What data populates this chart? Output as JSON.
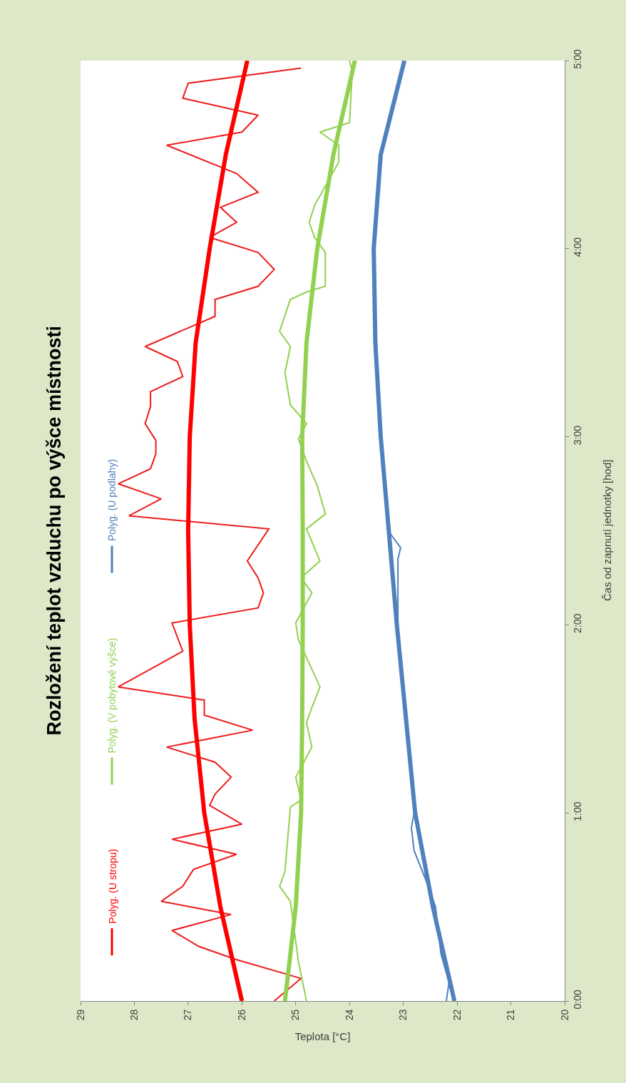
{
  "chart_data": {
    "type": "line",
    "title": "Rozložení teplot vzduchu po výšce místnosti",
    "xlabel": "Teplota [°C]",
    "ylabel": "Čas od zapnutí jednotky [hod]",
    "ylim": [
      0,
      5
    ],
    "yticks": [
      {
        "value": 0,
        "label": "0:00"
      },
      {
        "value": 1,
        "label": "1:00"
      },
      {
        "value": 2,
        "label": "2:00"
      },
      {
        "value": 3,
        "label": "3:00"
      },
      {
        "value": 4,
        "label": "4:00"
      },
      {
        "value": 5,
        "label": "5:00"
      }
    ],
    "xlim": [
      29,
      20
    ],
    "xticks": [
      29,
      28,
      27,
      26,
      25,
      24,
      23,
      22,
      21,
      20
    ],
    "legend": "left",
    "series": [
      {
        "color": "#ee1c1c",
        "values": [
          0,
          0.12,
          0.22,
          0.29,
          0.375,
          0.46,
          0.53,
          0.61,
          0.7,
          0.78,
          0.86,
          0.94,
          1.04,
          1.1,
          1.19,
          1.27,
          1.35,
          1.44,
          1.52,
          1.6,
          1.67,
          1.78,
          1.86,
          2.01,
          2.09,
          2.17,
          2.25,
          2.34,
          2.51,
          2.58,
          2.67,
          2.75,
          2.83,
          2.91,
          2.98,
          3.07,
          3.16,
          3.24,
          3.32,
          3.4,
          3.48,
          3.64,
          3.73,
          3.8,
          3.89,
          3.98,
          4.06,
          4.14,
          4.22,
          4.3,
          4.4,
          4.55,
          4.62,
          4.71,
          4.8,
          4.88,
          4.96
        ],
        "x": [
          25.4,
          24.9,
          26.1,
          26.8,
          27.3,
          26.2,
          27.5,
          27.1,
          26.9,
          26.1,
          27.3,
          26.0,
          26.6,
          26.5,
          26.2,
          26.5,
          27.4,
          25.8,
          26.7,
          26.7,
          28.3,
          27.6,
          27.1,
          27.3,
          25.7,
          25.6,
          25.7,
          25.9,
          25.5,
          28.1,
          27.5,
          28.3,
          27.7,
          27.6,
          27.6,
          27.8,
          27.7,
          27.7,
          27.1,
          27.2,
          27.8,
          26.5,
          26.5,
          25.7,
          25.4,
          25.7,
          26.6,
          26.1,
          26.4,
          25.7,
          26.1,
          27.4,
          26.0,
          25.7,
          27.1,
          27.0,
          24.9
        ]
      },
      {
        "color": "#92d050",
        "values": [
          0,
          0.21,
          0.53,
          0.61,
          0.69,
          0.86,
          1.03,
          1.07,
          1.19,
          1.35,
          1.48,
          1.56,
          1.67,
          1.92,
          2.01,
          2.17,
          2.25,
          2.34,
          2.51,
          2.59,
          2.74,
          2.87,
          2.99,
          3.07,
          3.17,
          3.34,
          3.48,
          3.56,
          3.73,
          3.77,
          3.8,
          3.98,
          4.06,
          4.14,
          4.23,
          4.46,
          4.55,
          4.62,
          4.67,
          4.94,
          5
        ],
        "x": [
          24.8,
          24.95,
          25.1,
          25.3,
          25.2,
          25.15,
          25.1,
          24.9,
          25.0,
          24.7,
          24.8,
          24.7,
          24.55,
          24.95,
          25.0,
          24.7,
          24.9,
          24.55,
          24.8,
          24.45,
          24.6,
          24.8,
          24.95,
          24.8,
          25.1,
          25.2,
          25.1,
          25.3,
          25.1,
          24.8,
          24.45,
          24.45,
          24.65,
          24.75,
          24.65,
          24.2,
          24.2,
          24.55,
          24.0,
          23.95,
          24.0
        ]
      },
      {
        "color": "#4f81bd",
        "values": [
          0,
          0.1,
          0.25,
          0.5,
          0.62,
          0.8,
          0.92,
          1.0,
          1.5,
          2.0,
          2.35,
          2.41,
          2.5,
          3.0,
          3.5,
          4.0,
          4.5,
          4.9,
          5
        ],
        "x": [
          22.2,
          22.15,
          22.3,
          22.4,
          22.55,
          22.8,
          22.85,
          22.8,
          22.95,
          23.1,
          23.1,
          23.05,
          23.28,
          23.42,
          23.52,
          23.55,
          23.4,
          23.05,
          23.0
        ]
      },
      {
        "name": "Polyg. (U stropu)",
        "color": "#ff0000",
        "values": [
          0,
          0.5,
          1,
          1.5,
          2,
          2.5,
          3,
          3.5,
          4,
          4.5,
          5
        ],
        "x": [
          26.0,
          26.4,
          26.7,
          26.88,
          26.97,
          27.0,
          26.97,
          26.86,
          26.6,
          26.3,
          25.9
        ]
      },
      {
        "name": "Polyg. (V pobytové výšce)",
        "color": "#92d050",
        "values": [
          0,
          0.5,
          1,
          1.5,
          2,
          2.5,
          3,
          3.5,
          4,
          4.5,
          5
        ],
        "x": [
          25.2,
          25.0,
          24.9,
          24.88,
          24.87,
          24.87,
          24.88,
          24.8,
          24.6,
          24.3,
          23.9
        ]
      },
      {
        "name": "Polyg. (U podlahy)",
        "color": "#4f81bd",
        "values": [
          0,
          0.5,
          1,
          1.5,
          2,
          2.5,
          3,
          3.5,
          4,
          4.5,
          5
        ],
        "x": [
          22.05,
          22.45,
          22.78,
          22.95,
          23.12,
          23.27,
          23.42,
          23.52,
          23.55,
          23.42,
          22.98
        ]
      }
    ]
  }
}
